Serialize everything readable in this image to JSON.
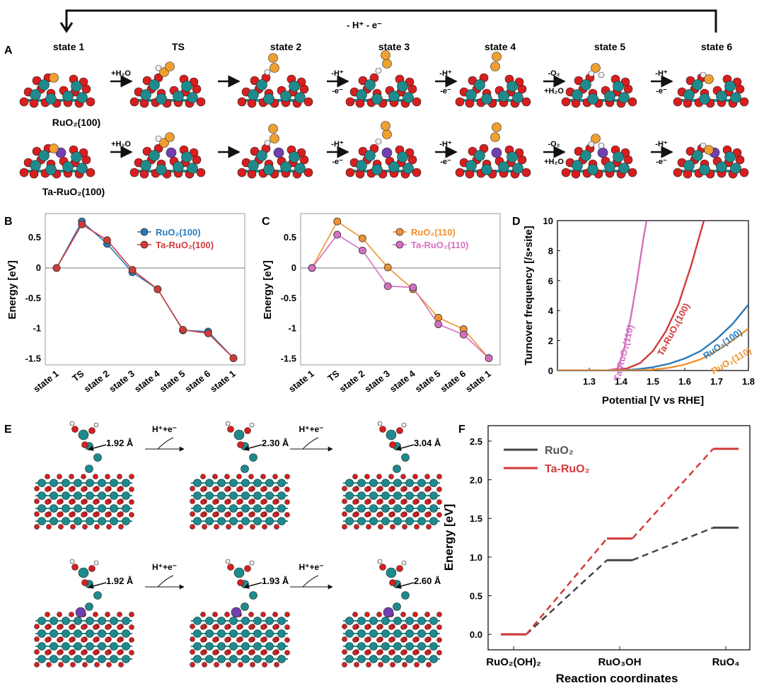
{
  "panelA": {
    "label": "A",
    "top_arrow_label": "- H⁺ - e⁻",
    "states": [
      "state 1",
      "TS",
      "state 2",
      "state 3",
      "state 4",
      "state 5",
      "state 6"
    ],
    "row1_label": "RuO₂(100)",
    "row2_label": "Ta-RuO₂(100)",
    "steps": [
      {
        "top": "+H₂O",
        "bottom": ""
      },
      {
        "top": "",
        "bottom": ""
      },
      {
        "top": "-H⁺",
        "bottom": "-e⁻"
      },
      {
        "top": "-H⁺",
        "bottom": "-e⁻"
      },
      {
        "top": "-O₂",
        "bottom": "+H₂O"
      },
      {
        "top": "-H⁺",
        "bottom": "-e⁻"
      }
    ]
  },
  "panelE": {
    "label": "E",
    "step_label": "H⁺+e⁻",
    "distances_top": [
      "1.92 Å",
      "2.30 Å",
      "3.04 Å"
    ],
    "distances_bottom": [
      "1.92 Å",
      "1.93 Å",
      "2.60 Å"
    ]
  },
  "colors": {
    "ru": "#1f8a8c",
    "o": "#d81e1e",
    "h": "#f0f0f0",
    "oads": "#f0a030",
    "ta": "#7040b0",
    "blue": "#2a7ab8",
    "red": "#d23a3a",
    "orange": "#f0922e",
    "pink": "#d56fc2",
    "black": "#444444"
  },
  "chart_data": [
    {
      "id": "B",
      "label": "B",
      "type": "line",
      "categories": [
        "state 1",
        "TS",
        "state 2",
        "state 3",
        "state 4",
        "state 5",
        "state 6",
        "state 1"
      ],
      "ylabel": "Energy [eV]",
      "ylim": [
        -1.6,
        0.9
      ],
      "yticks": [
        0.5,
        0,
        -0.5,
        -1,
        -1.5
      ],
      "ytick_labels": [
        "0.5",
        "0",
        "-0.5",
        "-1",
        "-1.5"
      ],
      "legend_position": "top-right",
      "series": [
        {
          "name": "RuO₂(100)",
          "color": "#2a7ab8",
          "values": [
            0,
            0.77,
            0.4,
            -0.07,
            -0.35,
            -1.03,
            -1.05,
            -1.49
          ]
        },
        {
          "name": "Ta-RuO₂(100)",
          "color": "#d23a3a",
          "values": [
            0,
            0.72,
            0.46,
            -0.03,
            -0.35,
            -1.02,
            -1.08,
            -1.49
          ]
        }
      ]
    },
    {
      "id": "C",
      "label": "C",
      "type": "line",
      "categories": [
        "state 1",
        "TS",
        "state 2",
        "state 3",
        "state 4",
        "state 5",
        "state 6",
        "state 1"
      ],
      "ylabel": "Energy [eV]",
      "ylim": [
        -1.6,
        0.9
      ],
      "yticks": [
        0.5,
        0,
        -0.5,
        -1,
        -1.5
      ],
      "ytick_labels": [
        "0.5",
        "0",
        "-0.5",
        "-1",
        "-1.5"
      ],
      "legend_position": "top-right",
      "series": [
        {
          "name": "RuO₂(110)",
          "color": "#f0922e",
          "values": [
            0,
            0.77,
            0.49,
            0.01,
            -0.35,
            -0.82,
            -1.01,
            -1.49
          ]
        },
        {
          "name": "Ta-RuO₂(110)",
          "color": "#d56fc2",
          "values": [
            0,
            0.55,
            0.29,
            -0.3,
            -0.32,
            -0.93,
            -1.1,
            -1.49
          ]
        }
      ]
    },
    {
      "id": "D",
      "label": "D",
      "type": "line",
      "xlabel": "Potential [V vs RHE]",
      "ylabel": "Turnover frequency [/s•site]",
      "xlim": [
        1.2,
        1.8
      ],
      "ylim": [
        0,
        10
      ],
      "xticks": [
        1.3,
        1.4,
        1.5,
        1.6,
        1.7,
        1.8
      ],
      "xtick_labels": [
        "1.3",
        "1.4",
        "1.5",
        "1.6",
        "1.7",
        "1.8"
      ],
      "yticks": [
        0,
        2,
        4,
        6,
        8,
        10
      ],
      "ytick_labels": [
        "0",
        "2",
        "4",
        "6",
        "8",
        "10"
      ],
      "series": [
        {
          "name": "Ta-RuO₂(110)",
          "color": "#d56fc2",
          "x": [
            1.2,
            1.36,
            1.39,
            1.41,
            1.43,
            1.45,
            1.47,
            1.48
          ],
          "y": [
            0,
            0.02,
            0.15,
            1.5,
            3.5,
            6,
            8.8,
            10
          ]
        },
        {
          "name": "Ta-RuO₂(100)",
          "color": "#d23a3a",
          "x": [
            1.2,
            1.38,
            1.42,
            1.46,
            1.5,
            1.54,
            1.58,
            1.62,
            1.66
          ],
          "y": [
            0,
            0.02,
            0.15,
            0.5,
            1.3,
            2.6,
            4.4,
            7,
            10
          ]
        },
        {
          "name": "RuO₂(100)",
          "color": "#2a7ab8",
          "x": [
            1.2,
            1.4,
            1.45,
            1.5,
            1.55,
            1.6,
            1.65,
            1.7,
            1.75,
            1.8
          ],
          "y": [
            0,
            0.02,
            0.08,
            0.22,
            0.45,
            0.8,
            1.3,
            2.1,
            3.1,
            4.4
          ]
        },
        {
          "name": "RuO₂(110)",
          "color": "#f0922e",
          "x": [
            1.2,
            1.45,
            1.5,
            1.55,
            1.6,
            1.65,
            1.7,
            1.75,
            1.8
          ],
          "y": [
            0,
            0.01,
            0.06,
            0.18,
            0.4,
            0.75,
            1.3,
            2,
            2.8
          ]
        }
      ]
    },
    {
      "id": "F",
      "label": "F",
      "type": "line",
      "categories": [
        "RuO₂(OH)₂",
        "RuO₃OH",
        "RuO₄"
      ],
      "xlabel": "Reaction coordinates",
      "ylabel": "Energy [eV]",
      "ylim": [
        -0.2,
        2.7
      ],
      "yticks": [
        0,
        0.5,
        1,
        1.5,
        2,
        2.5
      ],
      "ytick_labels": [
        "0.0",
        "0.5",
        "1.0",
        "1.5",
        "2.0",
        "2.5"
      ],
      "legend_position": "top-left",
      "series": [
        {
          "name": "RuO₂",
          "color": "#444444",
          "values": [
            0,
            0.96,
            1.38
          ]
        },
        {
          "name": "Ta-RuO₂",
          "color": "#d23a3a",
          "values": [
            0,
            1.24,
            2.4
          ]
        }
      ]
    }
  ]
}
